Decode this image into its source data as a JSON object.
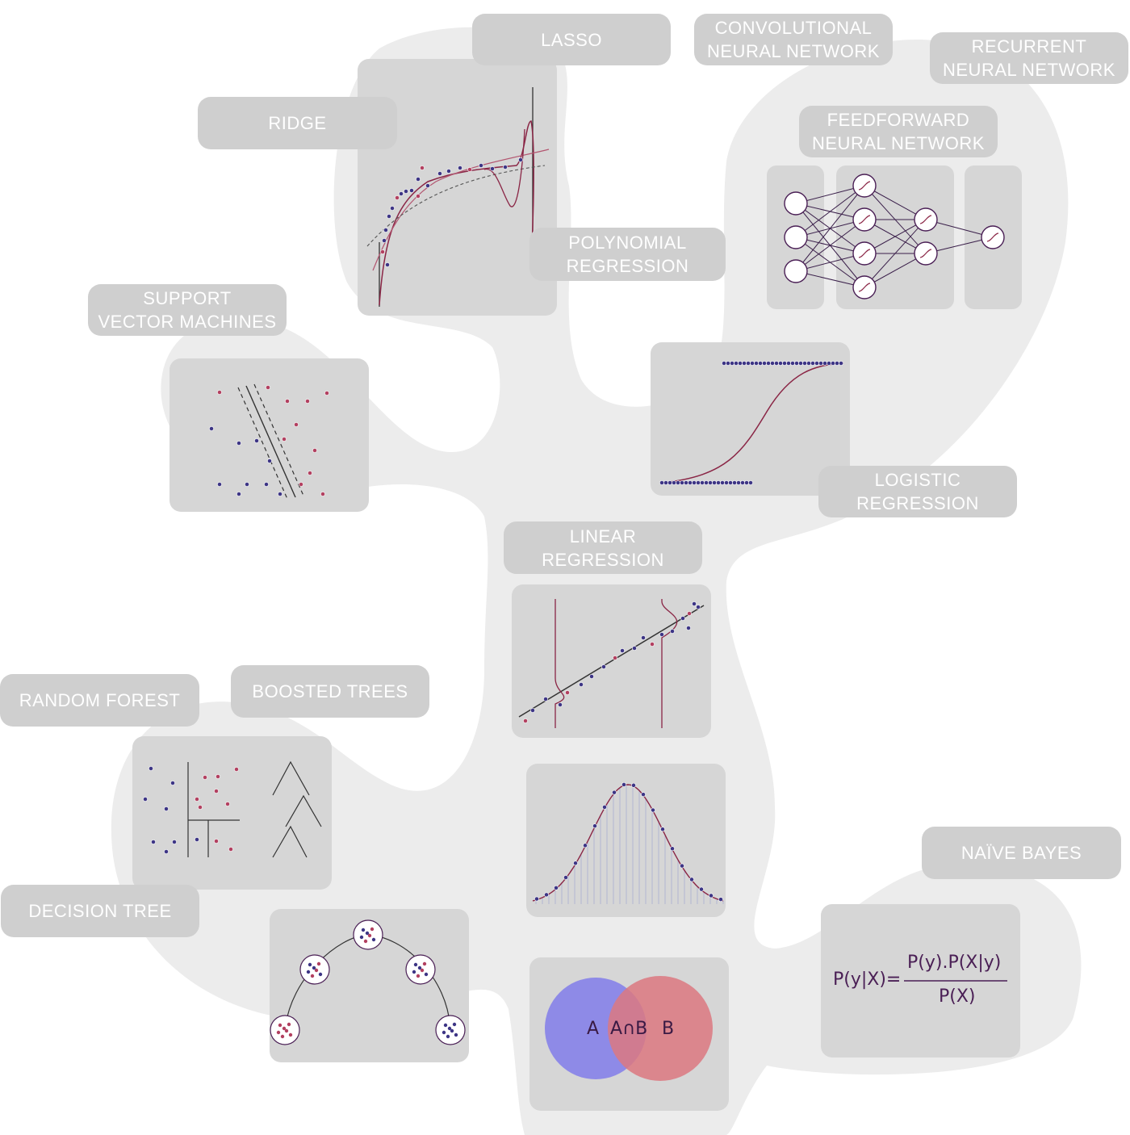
{
  "labels": {
    "lasso": "LASSO",
    "ridge": "RIDGE",
    "cnn": "CONVOLUTIONAL\nNEURAL NETWORK",
    "rnn": "RECURRENT\nNEURAL NETWORK",
    "ffnn": "FEEDFORWARD\nNEURAL NETWORK",
    "polynomial": "POLYNOMIAL\nREGRESSION",
    "svm": "SUPPORT\nVECTOR MACHINES",
    "logistic": "LOGISTIC\nREGRESSION",
    "linear": "LINEAR\nREGRESSION",
    "random_forest": "RANDOM FOREST",
    "boosted_trees": "BOOSTED TREES",
    "decision_tree": "DECISION TREE",
    "naive_bayes": "NAÏVE BAYES"
  },
  "naive_bayes_formula": {
    "lhs": "P(y|X)=",
    "numerator": "P(y).P(X|y)",
    "denominator": "P(X)"
  },
  "venn": {
    "left": "A",
    "middle": "A∩B",
    "right": "B",
    "colors": {
      "a": "#8a86e8",
      "b": "#dc7880"
    }
  },
  "colors": {
    "blob": "#ececec",
    "panel": "#d6d6d6",
    "label_bg": "#cfcfcf",
    "dot_blue": "#3d3585",
    "dot_red": "#b24060",
    "curve": "#8a2545"
  }
}
